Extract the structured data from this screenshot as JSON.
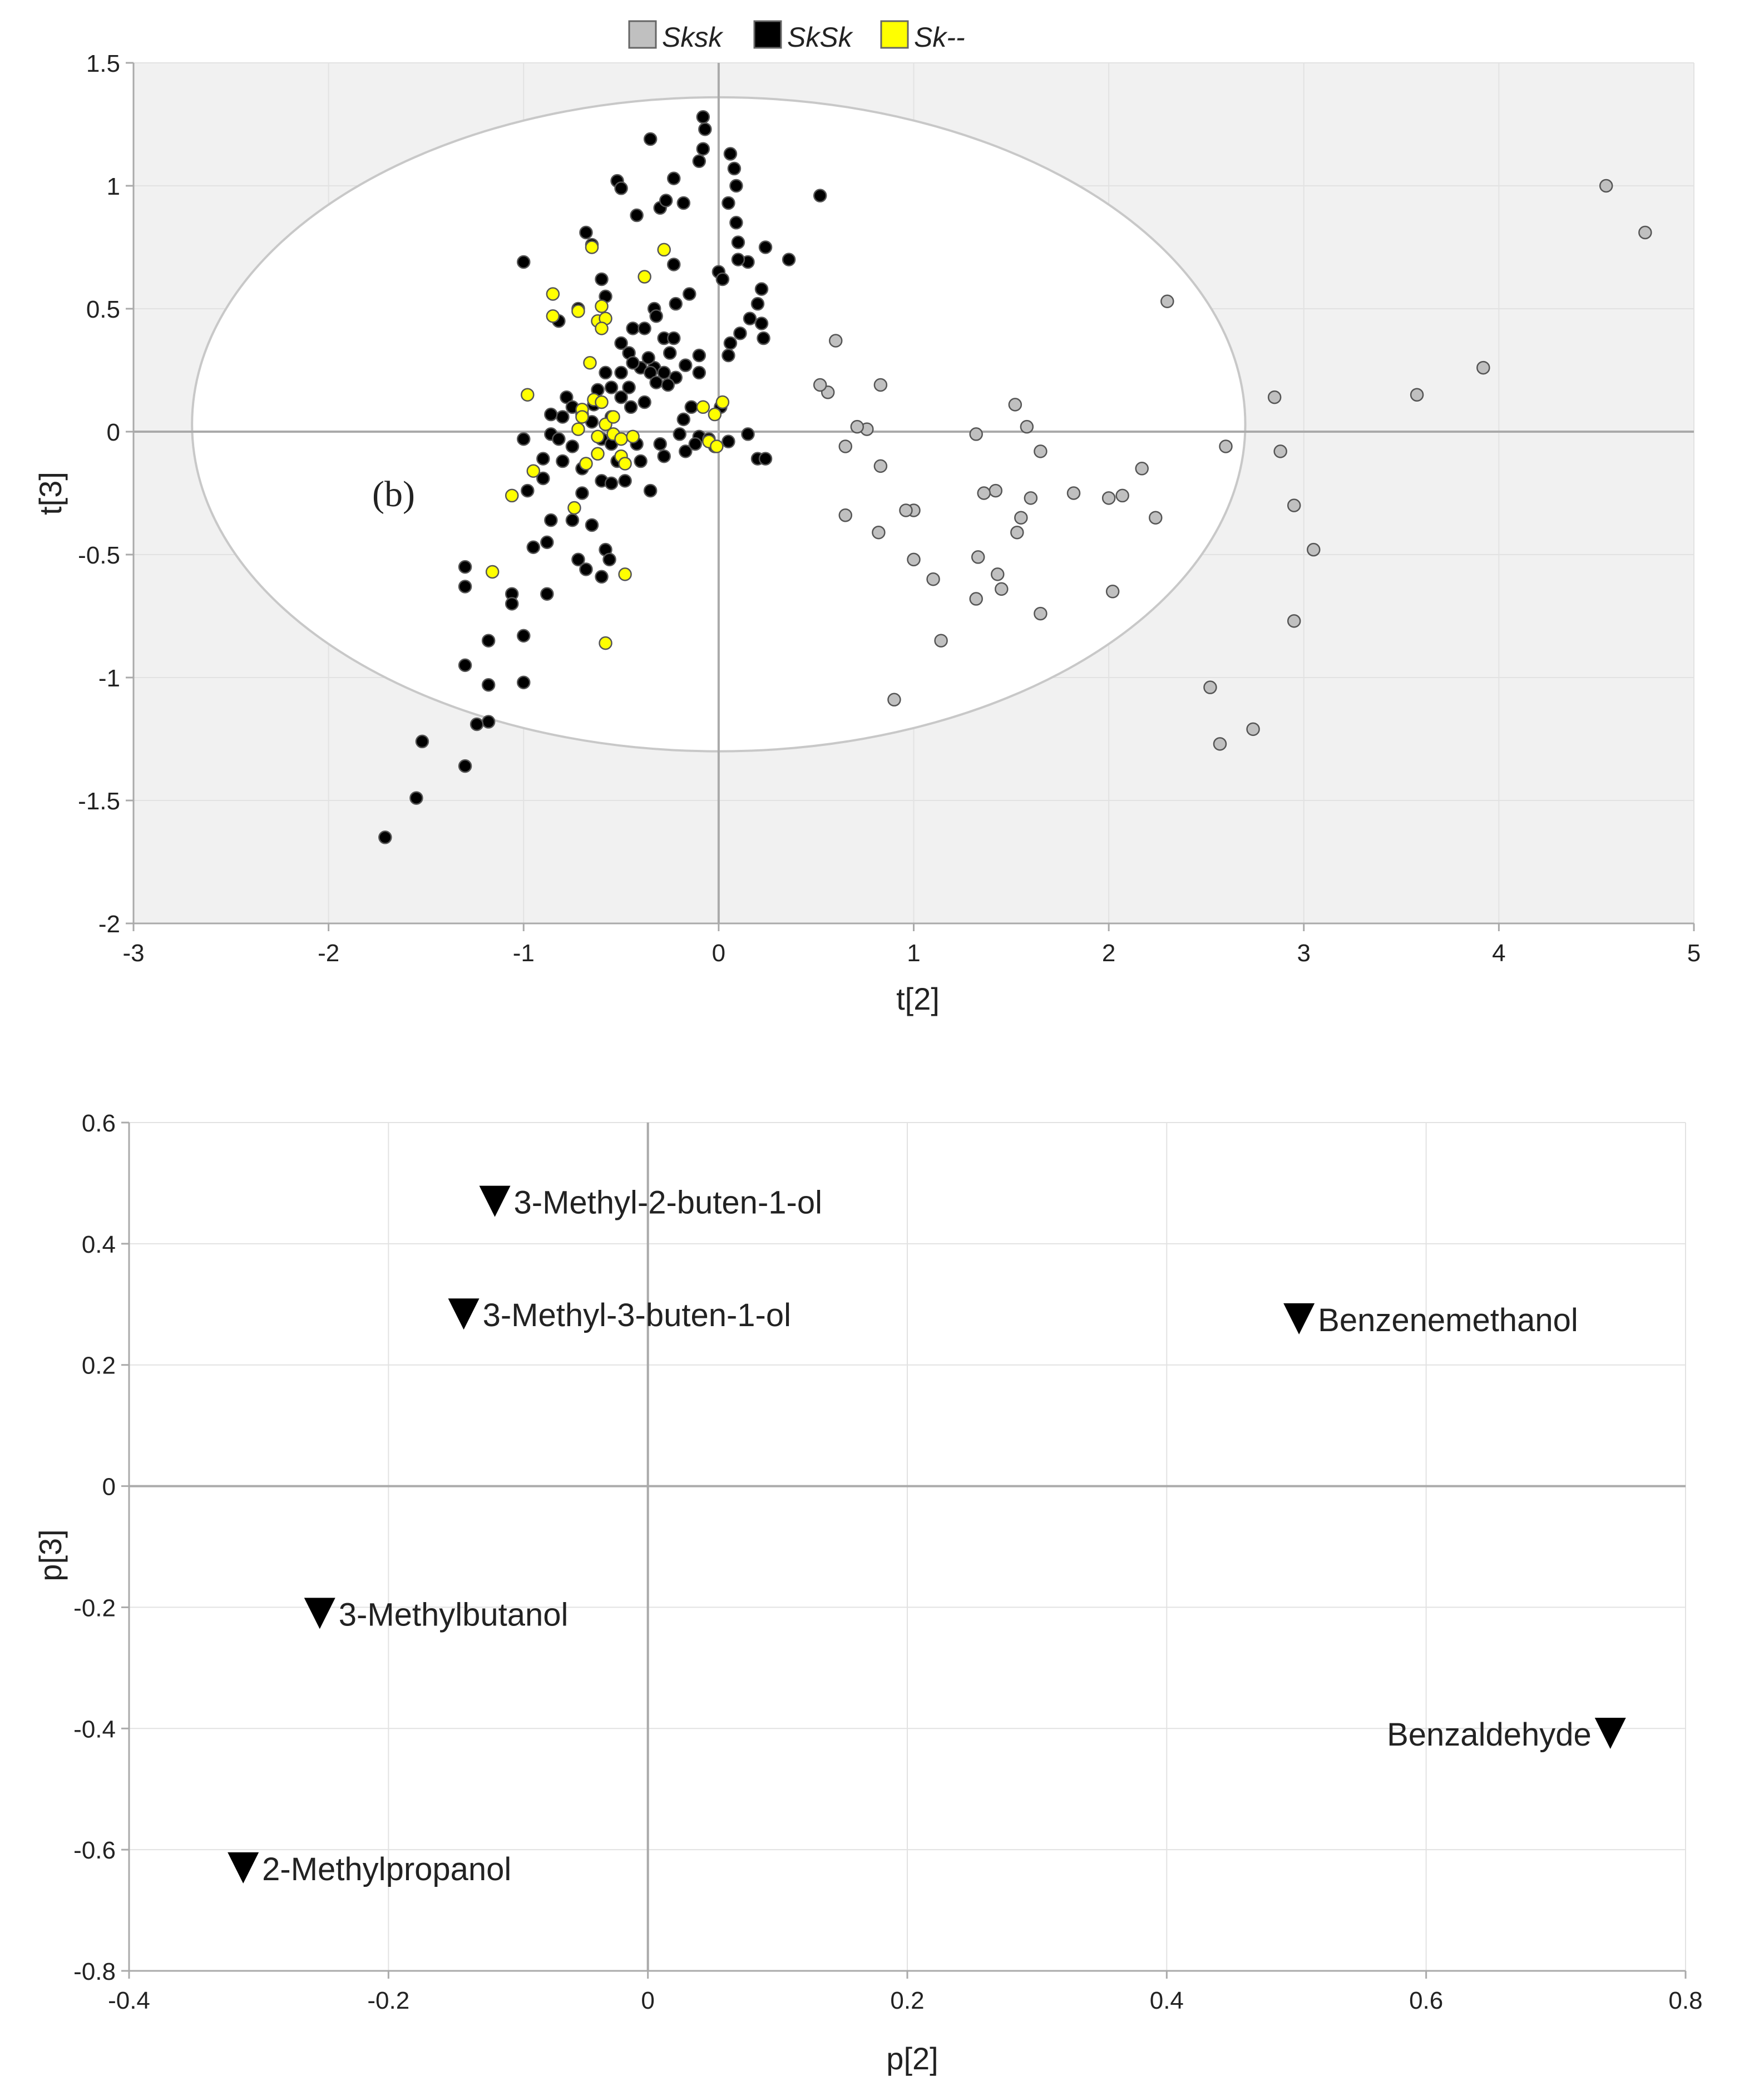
{
  "legend": [
    {
      "name": "Sksk",
      "color": "#c0c0c0"
    },
    {
      "name": "SkSk",
      "color": "#000000"
    },
    {
      "name": "Sk--",
      "color": "#ffff00"
    }
  ],
  "colors": {
    "plot_bg": "#f1f1f1",
    "ellipse": "#ffffff",
    "axis": "#aaaaaa",
    "grid": "#e2e2e2",
    "marker": "#000000"
  },
  "chart_data": [
    {
      "type": "scatter",
      "panel_label": "(b)",
      "xlabel": "t[2]",
      "ylabel": "t[3]",
      "xlim": [
        -3,
        5
      ],
      "ylim": [
        -2,
        1.5
      ],
      "xticks": [
        "-3",
        "-2",
        "-1",
        "0",
        "1",
        "2",
        "3",
        "4",
        "5"
      ],
      "yticks": [
        "1.5",
        "1",
        "0.5",
        "0",
        "-0.5",
        "-1",
        "-1.5",
        "-2"
      ],
      "ellipse": {
        "cx": 0,
        "cy": 0.03,
        "rx": 2.7,
        "ry": 1.33
      },
      "series": [
        {
          "name": "Sksk",
          "color": "#c0c0c0",
          "points": [
            [
              4.55,
              1.0
            ],
            [
              4.75,
              0.81
            ],
            [
              3.92,
              0.26
            ],
            [
              3.58,
              0.15
            ],
            [
              2.3,
              0.53
            ],
            [
              2.85,
              0.14
            ],
            [
              2.88,
              -0.08
            ],
            [
              2.95,
              -0.3
            ],
            [
              3.05,
              -0.48
            ],
            [
              2.95,
              -0.77
            ],
            [
              2.6,
              -0.06
            ],
            [
              2.52,
              -1.04
            ],
            [
              2.57,
              -1.27
            ],
            [
              2.74,
              -1.21
            ],
            [
              2.24,
              -0.35
            ],
            [
              2.17,
              -0.15
            ],
            [
              2.07,
              -0.26
            ],
            [
              2.0,
              -0.27
            ],
            [
              2.02,
              -0.65
            ],
            [
              1.82,
              -0.25
            ],
            [
              1.65,
              -0.08
            ],
            [
              1.6,
              -0.27
            ],
            [
              1.58,
              0.02
            ],
            [
              1.52,
              0.11
            ],
            [
              1.55,
              -0.35
            ],
            [
              1.53,
              -0.41
            ],
            [
              1.45,
              -0.64
            ],
            [
              1.43,
              -0.58
            ],
            [
              1.42,
              -0.24
            ],
            [
              1.36,
              -0.25
            ],
            [
              1.33,
              -0.51
            ],
            [
              1.32,
              -0.68
            ],
            [
              1.32,
              -0.01
            ],
            [
              1.65,
              -0.74
            ],
            [
              1.14,
              -0.85
            ],
            [
              1.1,
              -0.6
            ],
            [
              1.0,
              -0.32
            ],
            [
              0.96,
              -0.32
            ],
            [
              1.0,
              -0.52
            ],
            [
              0.83,
              0.19
            ],
            [
              0.83,
              -0.14
            ],
            [
              0.82,
              -0.41
            ],
            [
              0.76,
              0.01
            ],
            [
              0.71,
              0.02
            ],
            [
              0.65,
              -0.06
            ],
            [
              0.65,
              -0.34
            ],
            [
              0.6,
              0.37
            ],
            [
              0.56,
              0.16
            ],
            [
              0.52,
              0.19
            ],
            [
              0.9,
              -1.09
            ]
          ]
        },
        {
          "name": "SkSk",
          "color": "#000000",
          "points": [
            [
              -0.08,
              1.28
            ],
            [
              -0.07,
              1.23
            ],
            [
              -0.35,
              1.19
            ],
            [
              -0.52,
              1.02
            ],
            [
              -0.5,
              0.99
            ],
            [
              -0.08,
              1.15
            ],
            [
              -0.1,
              1.1
            ],
            [
              0.06,
              1.13
            ],
            [
              0.08,
              1.07
            ],
            [
              0.09,
              1.0
            ],
            [
              -0.23,
              1.03
            ],
            [
              0.05,
              0.93
            ],
            [
              0.09,
              0.85
            ],
            [
              -0.3,
              0.91
            ],
            [
              -0.27,
              0.94
            ],
            [
              -0.42,
              0.88
            ],
            [
              -0.18,
              0.93
            ],
            [
              0.52,
              0.96
            ],
            [
              -0.68,
              0.81
            ],
            [
              -0.65,
              0.76
            ],
            [
              -1.0,
              0.69
            ],
            [
              0.1,
              0.77
            ],
            [
              0.24,
              0.75
            ],
            [
              0.36,
              0.7
            ],
            [
              0.15,
              0.69
            ],
            [
              0.1,
              0.7
            ],
            [
              -0.23,
              0.68
            ],
            [
              0.0,
              0.65
            ],
            [
              0.02,
              0.62
            ],
            [
              -0.15,
              0.56
            ],
            [
              -0.6,
              0.62
            ],
            [
              -0.58,
              0.55
            ],
            [
              0.22,
              0.58
            ],
            [
              0.2,
              0.52
            ],
            [
              0.16,
              0.46
            ],
            [
              0.22,
              0.44
            ],
            [
              0.11,
              0.4
            ],
            [
              0.06,
              0.36
            ],
            [
              0.05,
              0.31
            ],
            [
              -0.1,
              0.31
            ],
            [
              -0.72,
              0.5
            ],
            [
              -0.82,
              0.45
            ],
            [
              -0.33,
              0.5
            ],
            [
              -0.32,
              0.47
            ],
            [
              -0.22,
              0.52
            ],
            [
              -0.44,
              0.42
            ],
            [
              -0.38,
              0.42
            ],
            [
              -0.28,
              0.38
            ],
            [
              -0.5,
              0.36
            ],
            [
              -0.46,
              0.32
            ],
            [
              -0.25,
              0.32
            ],
            [
              -0.33,
              0.26
            ],
            [
              -0.36,
              0.3
            ],
            [
              -0.4,
              0.26
            ],
            [
              -0.44,
              0.28
            ],
            [
              -0.5,
              0.24
            ],
            [
              -0.35,
              0.24
            ],
            [
              -0.28,
              0.24
            ],
            [
              -0.22,
              0.22
            ],
            [
              -0.17,
              0.27
            ],
            [
              -0.1,
              0.24
            ],
            [
              -0.58,
              0.24
            ],
            [
              -0.55,
              0.18
            ],
            [
              -0.62,
              0.17
            ],
            [
              -0.5,
              0.14
            ],
            [
              -0.46,
              0.18
            ],
            [
              -0.38,
              0.12
            ],
            [
              -0.32,
              0.2
            ],
            [
              -0.26,
              0.19
            ],
            [
              -0.78,
              0.14
            ],
            [
              -0.7,
              0.07
            ],
            [
              -0.75,
              0.1
            ],
            [
              -0.64,
              0.11
            ],
            [
              -0.65,
              0.04
            ],
            [
              -0.55,
              0.06
            ],
            [
              -0.8,
              0.06
            ],
            [
              -0.86,
              0.07
            ],
            [
              -0.86,
              -0.01
            ],
            [
              -1.0,
              -0.03
            ],
            [
              -0.82,
              -0.03
            ],
            [
              -0.75,
              -0.06
            ],
            [
              -0.6,
              -0.03
            ],
            [
              -0.55,
              -0.05
            ],
            [
              -0.42,
              -0.05
            ],
            [
              -0.3,
              -0.05
            ],
            [
              -0.2,
              -0.01
            ],
            [
              -0.1,
              -0.02
            ],
            [
              -0.05,
              -0.03
            ],
            [
              0.05,
              -0.04
            ],
            [
              0.15,
              -0.01
            ],
            [
              -0.12,
              -0.05
            ],
            [
              -0.02,
              -0.06
            ],
            [
              0.2,
              -0.11
            ],
            [
              0.24,
              -0.11
            ],
            [
              -0.17,
              -0.08
            ],
            [
              -0.28,
              -0.1
            ],
            [
              -0.4,
              -0.12
            ],
            [
              -0.52,
              -0.12
            ],
            [
              -0.7,
              -0.15
            ],
            [
              -0.8,
              -0.12
            ],
            [
              -0.9,
              -0.11
            ],
            [
              -0.9,
              -0.19
            ],
            [
              -0.98,
              -0.24
            ],
            [
              -0.6,
              -0.2
            ],
            [
              -0.7,
              -0.25
            ],
            [
              -0.55,
              -0.21
            ],
            [
              -0.48,
              -0.2
            ],
            [
              -0.35,
              -0.24
            ],
            [
              -0.86,
              -0.36
            ],
            [
              -0.88,
              -0.45
            ],
            [
              -0.95,
              -0.47
            ],
            [
              -0.75,
              -0.36
            ],
            [
              -0.65,
              -0.38
            ],
            [
              -0.58,
              -0.48
            ],
            [
              -0.72,
              -0.52
            ],
            [
              -0.56,
              -0.52
            ],
            [
              -0.6,
              -0.59
            ],
            [
              -0.68,
              -0.56
            ],
            [
              -0.88,
              -0.66
            ],
            [
              -1.3,
              -0.55
            ],
            [
              -1.3,
              -0.63
            ],
            [
              -1.06,
              -0.66
            ],
            [
              -1.06,
              -0.7
            ],
            [
              -1.0,
              -0.83
            ],
            [
              -1.0,
              -1.02
            ],
            [
              -1.18,
              -0.85
            ],
            [
              -1.3,
              -0.95
            ],
            [
              -1.18,
              -1.03
            ],
            [
              -1.18,
              -1.18
            ],
            [
              -1.24,
              -1.19
            ],
            [
              -1.3,
              -1.36
            ],
            [
              -1.52,
              -1.26
            ],
            [
              -1.55,
              -1.49
            ],
            [
              -1.71,
              -1.65
            ],
            [
              -0.23,
              0.38
            ],
            [
              -0.14,
              0.1
            ],
            [
              0.01,
              0.1
            ],
            [
              0.23,
              0.38
            ],
            [
              -0.45,
              0.1
            ],
            [
              -0.18,
              0.05
            ]
          ]
        },
        {
          "name": "Sk--",
          "color": "#ffff00",
          "points": [
            [
              -0.65,
              0.75
            ],
            [
              -0.28,
              0.74
            ],
            [
              -0.38,
              0.63
            ],
            [
              -0.85,
              0.56
            ],
            [
              -0.6,
              0.51
            ],
            [
              -0.72,
              0.49
            ],
            [
              -0.62,
              0.45
            ],
            [
              -0.58,
              0.46
            ],
            [
              -0.6,
              0.42
            ],
            [
              -0.85,
              0.47
            ],
            [
              -0.66,
              0.28
            ],
            [
              -0.98,
              0.15
            ],
            [
              -0.64,
              0.13
            ],
            [
              -0.6,
              0.12
            ],
            [
              -0.7,
              0.09
            ],
            [
              -0.72,
              0.01
            ],
            [
              -0.58,
              0.03
            ],
            [
              -0.62,
              -0.02
            ],
            [
              -0.54,
              -0.01
            ],
            [
              -0.5,
              -0.03
            ],
            [
              -0.44,
              -0.02
            ],
            [
              -0.62,
              -0.09
            ],
            [
              -0.68,
              -0.13
            ],
            [
              -0.5,
              -0.1
            ],
            [
              -0.48,
              -0.13
            ],
            [
              -0.95,
              -0.16
            ],
            [
              -1.06,
              -0.26
            ],
            [
              -0.74,
              -0.31
            ],
            [
              -1.16,
              -0.57
            ],
            [
              -0.48,
              -0.58
            ],
            [
              -0.58,
              -0.86
            ],
            [
              -0.08,
              0.1
            ],
            [
              -0.02,
              0.07
            ],
            [
              0.02,
              0.12
            ],
            [
              -0.05,
              -0.04
            ],
            [
              -0.01,
              -0.06
            ],
            [
              -0.7,
              0.06
            ],
            [
              -0.54,
              0.06
            ]
          ]
        }
      ]
    },
    {
      "type": "scatter",
      "xlabel": "p[2]",
      "ylabel": "p[3]",
      "xlim": [
        -0.4,
        0.8
      ],
      "ylim": [
        -0.8,
        0.6
      ],
      "xticks": [
        "-0.4",
        "-0.2",
        "0",
        "0.2",
        "0.4",
        "0.6",
        "0.8"
      ],
      "yticks": [
        "0.6",
        "0.4",
        "0.2",
        "0",
        "-0.2",
        "-0.4",
        "-0.6",
        "-0.8"
      ],
      "marker": "triangle-down",
      "points": [
        {
          "label": "3-Methyl-2-buten-1-ol",
          "x": -0.118,
          "y": 0.47,
          "label_side": "right"
        },
        {
          "label": "3-Methyl-3-buten-1-ol",
          "x": -0.142,
          "y": 0.284,
          "label_side": "right"
        },
        {
          "label": "Benzenemethanol",
          "x": 0.502,
          "y": 0.276,
          "label_side": "right"
        },
        {
          "label": "3-Methylbutanol",
          "x": -0.253,
          "y": -0.21,
          "label_side": "right"
        },
        {
          "label": "Benzaldehyde",
          "x": 0.742,
          "y": -0.408,
          "label_side": "left"
        },
        {
          "label": "2-Methylpropanol",
          "x": -0.312,
          "y": -0.63,
          "label_side": "right"
        }
      ]
    }
  ]
}
